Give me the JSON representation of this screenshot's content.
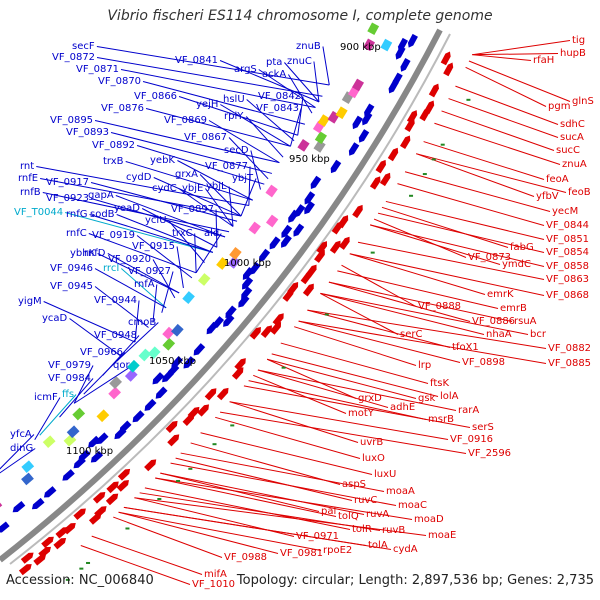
{
  "title": "Vibrio fischeri ES114 chromosome I, complete genome",
  "footer": {
    "accession": "Accession: NC_006840",
    "topology": "Topology: circular; Length: 2,897,536 bp; Genes: 2,735"
  },
  "colors": {
    "plus": "#0000cc",
    "minus": "#dd0000",
    "rna": "#00aacc",
    "ring": "#888888",
    "tick": "#228822"
  },
  "kbp_ticks": [
    "900 kbp",
    "950 kbp",
    "1000 kbp",
    "1050 kbp",
    "1100 kbp"
  ],
  "left_labels": [
    "secF",
    "VF_0872",
    "VF_0871",
    "VF_0870",
    "VF_0866",
    "VF_0876",
    "VF_0869",
    "VF_0841",
    "argS",
    "pta",
    "ackA",
    "znuB",
    "znuC",
    "hslU",
    "VF_0842",
    "VF_0843",
    "yejH",
    "rplY",
    "VF_0895",
    "VF_0893",
    "VF_0892",
    "VF_0867",
    "secD",
    "VF_0877",
    "ybjT",
    "rnt",
    "rnfE",
    "rnfB",
    "VF_0917",
    "VF_0923",
    "trxB",
    "cydD",
    "yebK",
    "grxA",
    "cydC",
    "ybjE",
    "ybjL",
    "VF_T0044",
    "rnfG",
    "sodB",
    "yeaD",
    "gapA",
    "VF_0897",
    "rnfC",
    "VF_0919",
    "yciU",
    "trxC",
    "ald",
    "VF_0915",
    "rnfD",
    "VF_0920",
    "ybhK",
    "rrcI",
    "VF_0946",
    "VF_0927",
    "VF_0945",
    "rnfA",
    "VF_0944",
    "yigM",
    "cmoB",
    "ycaD",
    "VF_0948",
    "VF_0966",
    "VF_0979",
    "qor",
    "VF_0984",
    "icmF",
    "ffs",
    "yfcA",
    "dinG"
  ],
  "right_labels": [
    "tig",
    "hupB",
    "rfaH",
    "glnS",
    "pgm",
    "sdhC",
    "sucA",
    "sucC",
    "znuA",
    "feoA",
    "feoB",
    "yfbV",
    "yecM",
    "VF_0844",
    "VF_0851",
    "fabG",
    "VF_0854",
    "VF_0873",
    "ymdC",
    "VF_0858",
    "VF_0863",
    "VF_0868",
    "emrK",
    "emrB",
    "VF_0888",
    "VF_0886",
    "rsuA",
    "nhaA",
    "bcr",
    "VF_0882",
    "VF_0885",
    "serC",
    "tfoX1",
    "VF_0898",
    "lrp",
    "ftsK",
    "grxD",
    "gsk",
    "lolA",
    "adhE",
    "rarA",
    "motY",
    "msrB",
    "serS",
    "VF_0916",
    "VF_2596",
    "uvrB",
    "luxO",
    "luxU",
    "aspS",
    "moaA",
    "moaC",
    "ruvC",
    "pal",
    "ruvA",
    "moaD",
    "tolQ",
    "ruvB",
    "tolR",
    "moaE",
    "VF_0971",
    "tolA",
    "cydA",
    "rpoE2",
    "VF_0981",
    "VF_0988",
    "mifA",
    "VF_1010"
  ]
}
